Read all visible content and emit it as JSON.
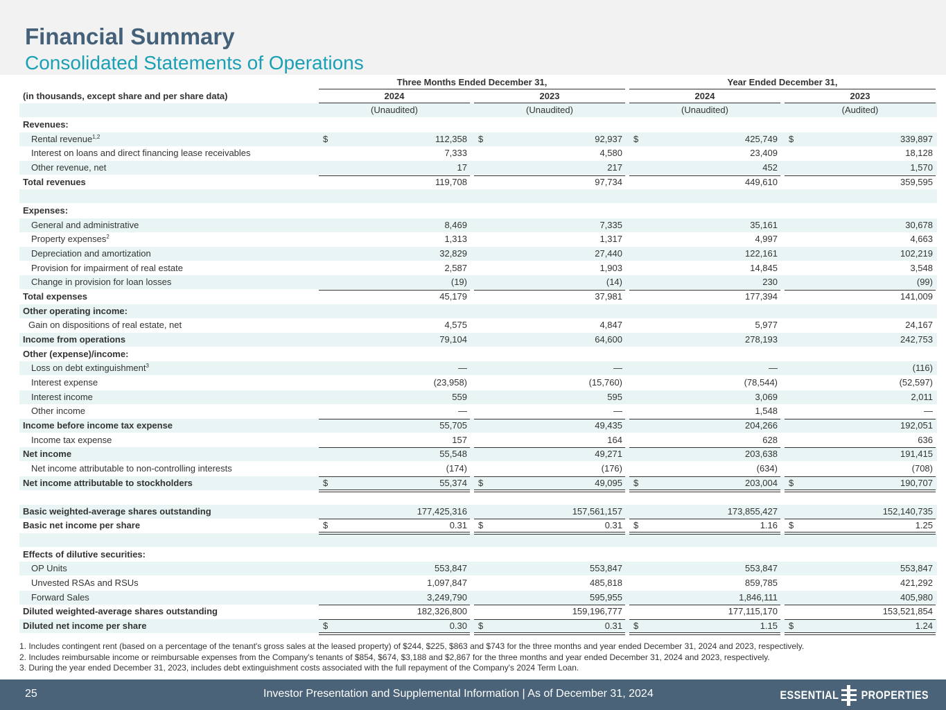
{
  "header": {
    "title": "Financial Summary",
    "subtitle": "Consolidated Statements of Operations"
  },
  "table": {
    "group_headers": [
      "Three Months Ended December 31,",
      "Year Ended December 31,"
    ],
    "label_header": "(in thousands, except share and per share data)",
    "years": [
      "2024",
      "2023",
      "2024",
      "2023"
    ],
    "audit": [
      "(Unaudited)",
      "(Unaudited)",
      "(Unaudited)",
      "(Audited)"
    ],
    "rows": [
      {
        "label": "Revenues:"
      },
      {
        "label": "Rental revenue",
        "sup": "1,2",
        "currency": "$",
        "values": [
          "112,358",
          "92,937",
          "425,749",
          "339,897"
        ]
      },
      {
        "label": "Interest on loans and direct financing lease receivables",
        "values": [
          "7,333",
          "4,580",
          "23,409",
          "18,128"
        ]
      },
      {
        "label": "Other revenue, net",
        "values": [
          "17",
          "217",
          "452",
          "1,570"
        ]
      },
      {
        "label": "Total revenues",
        "values": [
          "119,708",
          "97,734",
          "449,610",
          "359,595"
        ]
      },
      {
        "label": "Expenses:"
      },
      {
        "label": "General and administrative",
        "values": [
          "8,469",
          "7,335",
          "35,161",
          "30,678"
        ]
      },
      {
        "label": "Property expenses",
        "sup": "2",
        "values": [
          "1,313",
          "1,317",
          "4,997",
          "4,663"
        ]
      },
      {
        "label": "Depreciation and amortization",
        "values": [
          "32,829",
          "27,440",
          "122,161",
          "102,219"
        ]
      },
      {
        "label": "Provision for impairment of real estate",
        "values": [
          "2,587",
          "1,903",
          "14,845",
          "3,548"
        ]
      },
      {
        "label": "Change in provision for loan losses",
        "values": [
          "(19)",
          "(14)",
          "230",
          "(99)"
        ]
      },
      {
        "label": "Total expenses",
        "values": [
          "45,179",
          "37,981",
          "177,394",
          "141,009"
        ]
      },
      {
        "label": "Other operating income:"
      },
      {
        "label": "Gain on dispositions of real estate, net",
        "values": [
          "4,575",
          "4,847",
          "5,977",
          "24,167"
        ]
      },
      {
        "label": "Income from operations",
        "values": [
          "79,104",
          "64,600",
          "278,193",
          "242,753"
        ]
      },
      {
        "label": "Other (expense)/income:"
      },
      {
        "label": "Loss on debt extinguishment",
        "sup": "3",
        "values": [
          "—",
          "—",
          "—",
          "(116)"
        ]
      },
      {
        "label": "Interest expense",
        "values": [
          "(23,958)",
          "(15,760)",
          "(78,544)",
          "(52,597)"
        ]
      },
      {
        "label": "Interest income",
        "values": [
          "559",
          "595",
          "3,069",
          "2,011"
        ]
      },
      {
        "label": "Other income",
        "values": [
          "—",
          "—",
          "1,548",
          "—"
        ]
      },
      {
        "label": "Income before income tax expense",
        "values": [
          "55,705",
          "49,435",
          "204,266",
          "192,051"
        ]
      },
      {
        "label": "Income tax expense",
        "values": [
          "157",
          "164",
          "628",
          "636"
        ]
      },
      {
        "label": "Net income",
        "values": [
          "55,548",
          "49,271",
          "203,638",
          "191,415"
        ]
      },
      {
        "label": "Net income attributable to non-controlling interests",
        "values": [
          "(174)",
          "(176)",
          "(634)",
          "(708)"
        ]
      },
      {
        "label": "Net income attributable to stockholders",
        "currency": "$",
        "values": [
          "55,374",
          "49,095",
          "203,004",
          "190,707"
        ]
      },
      {
        "label": "Basic weighted-average shares outstanding",
        "values": [
          "177,425,316",
          "157,561,157",
          "173,855,427",
          "152,140,735"
        ]
      },
      {
        "label": "Basic net income per share",
        "currency": "$",
        "values": [
          "0.31",
          "0.31",
          "1.16",
          "1.25"
        ]
      },
      {
        "label": "Effects of dilutive securities:"
      },
      {
        "label": "OP Units",
        "values": [
          "553,847",
          "553,847",
          "553,847",
          "553,847"
        ]
      },
      {
        "label": "Unvested RSAs and RSUs",
        "values": [
          "1,097,847",
          "485,818",
          "859,785",
          "421,292"
        ]
      },
      {
        "label": "Forward Sales",
        "values": [
          "3,249,790",
          "595,955",
          "1,846,111",
          "405,980"
        ]
      },
      {
        "label": "Diluted weighted-average shares outstanding",
        "values": [
          "182,326,800",
          "159,196,777",
          "177,115,170",
          "153,521,854"
        ]
      },
      {
        "label": "Diluted net income per share",
        "currency": "$",
        "values": [
          "0.30",
          "0.31",
          "1.15",
          "1.24"
        ]
      }
    ]
  },
  "footnotes": [
    "1. Includes contingent rent (based on a percentage of the tenant's gross sales at the leased property) of $244, $225, $863 and $743 for the three months and year ended December 31, 2024 and 2023, respectively.",
    "2. Includes reimbursable income or reimbursable expenses from the Company's tenants of $854, $674, $3,188 and $2,867 for the three months and year ended December 31, 2024 and 2023, respectively.",
    "3. During the year ended December 31, 2023, includes debt extinguishment costs associated with the full repayment of the Company's 2024 Term Loan."
  ],
  "footer": {
    "page": "25",
    "text": "Investor Presentation and Supplemental Information |  As of December 31, 2024",
    "logo_left": "ESSENTIAL",
    "logo_right": "PROPERTIES"
  }
}
